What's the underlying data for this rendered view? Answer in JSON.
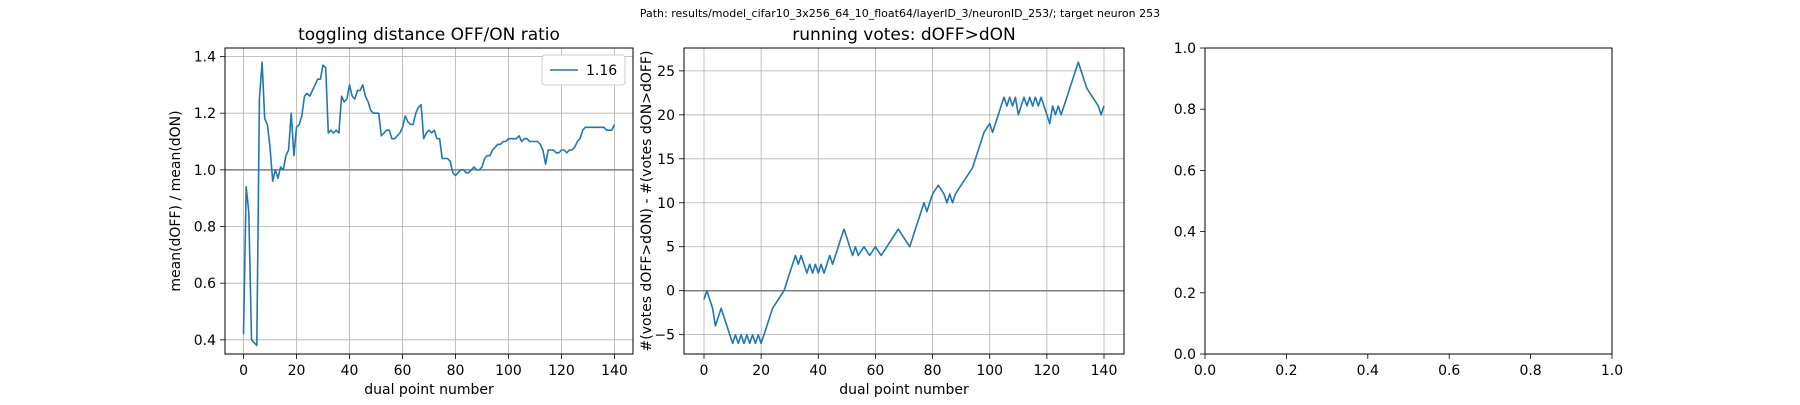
{
  "figure": {
    "suptitle": "Path: results/model_cifar10_3x256_64_10_float64/layerID_3/neuronID_253/; target neuron 253"
  },
  "chart_data": [
    {
      "type": "line",
      "title": "toggling distance OFF/ON ratio",
      "xlabel": "dual point number",
      "ylabel": "mean(dOFF) / mean(dON)",
      "xlim": [
        -7,
        147
      ],
      "ylim": [
        0.35,
        1.43
      ],
      "xticks": [
        0,
        20,
        40,
        60,
        80,
        100,
        120,
        140
      ],
      "yticks": [
        0.4,
        0.6,
        0.8,
        1.0,
        1.2,
        1.4
      ],
      "ytick_labels": [
        "0.4",
        "0.6",
        "0.8",
        "1.0",
        "1.2",
        "1.4"
      ],
      "grid": true,
      "reference_line": 1.0,
      "legend": {
        "position": "top-right",
        "entries": [
          "1.16"
        ]
      },
      "series": [
        {
          "name": "1.16",
          "color": "#1f77b4",
          "x": [
            0,
            1,
            2,
            3,
            4,
            5,
            6,
            7,
            8,
            9,
            10,
            11,
            12,
            13,
            14,
            15,
            16,
            17,
            18,
            19,
            20,
            21,
            22,
            23,
            24,
            25,
            26,
            27,
            28,
            29,
            30,
            31,
            32,
            33,
            34,
            35,
            36,
            37,
            38,
            39,
            40,
            41,
            42,
            43,
            44,
            45,
            46,
            47,
            48,
            49,
            50,
            51,
            52,
            53,
            54,
            55,
            56,
            57,
            58,
            59,
            60,
            61,
            62,
            63,
            64,
            65,
            66,
            67,
            68,
            69,
            70,
            71,
            72,
            73,
            74,
            75,
            76,
            77,
            78,
            79,
            80,
            81,
            82,
            83,
            84,
            85,
            86,
            87,
            88,
            89,
            90,
            91,
            92,
            93,
            94,
            95,
            96,
            97,
            98,
            99,
            100,
            101,
            102,
            103,
            104,
            105,
            106,
            107,
            108,
            109,
            110,
            111,
            112,
            113,
            114,
            115,
            116,
            117,
            118,
            119,
            120,
            121,
            122,
            123,
            124,
            125,
            126,
            127,
            128,
            129,
            130,
            131,
            132,
            133,
            134,
            135,
            136,
            137,
            138,
            139,
            140
          ],
          "y": [
            0.42,
            0.94,
            0.85,
            0.4,
            0.39,
            0.38,
            1.25,
            1.38,
            1.18,
            1.16,
            1.08,
            0.96,
            1.0,
            0.97,
            1.01,
            1.0,
            1.05,
            1.07,
            1.2,
            1.05,
            1.15,
            1.16,
            1.19,
            1.26,
            1.27,
            1.26,
            1.28,
            1.3,
            1.32,
            1.32,
            1.37,
            1.36,
            1.13,
            1.14,
            1.13,
            1.14,
            1.13,
            1.26,
            1.24,
            1.25,
            1.3,
            1.26,
            1.25,
            1.28,
            1.28,
            1.3,
            1.26,
            1.24,
            1.21,
            1.2,
            1.2,
            1.2,
            1.12,
            1.13,
            1.14,
            1.14,
            1.11,
            1.11,
            1.12,
            1.13,
            1.15,
            1.19,
            1.17,
            1.16,
            1.16,
            1.2,
            1.22,
            1.23,
            1.11,
            1.13,
            1.14,
            1.13,
            1.14,
            1.11,
            1.11,
            1.04,
            1.04,
            1.04,
            1.03,
            0.99,
            0.98,
            0.99,
            1.0,
            1.0,
            0.99,
            0.99,
            1.0,
            1.01,
            1.0,
            1.0,
            1.01,
            1.04,
            1.05,
            1.05,
            1.07,
            1.08,
            1.09,
            1.09,
            1.1,
            1.1,
            1.11,
            1.11,
            1.11,
            1.11,
            1.12,
            1.1,
            1.11,
            1.11,
            1.1,
            1.1,
            1.1,
            1.1,
            1.09,
            1.07,
            1.02,
            1.07,
            1.07,
            1.07,
            1.06,
            1.06,
            1.07,
            1.07,
            1.06,
            1.07,
            1.07,
            1.08,
            1.1,
            1.11,
            1.14,
            1.15,
            1.15,
            1.15,
            1.15,
            1.15,
            1.15,
            1.15,
            1.15,
            1.14,
            1.14,
            1.14,
            1.16
          ]
        }
      ]
    },
    {
      "type": "line",
      "title": "running votes: dOFF>dON",
      "xlabel": "dual point number",
      "ylabel": "#(votes dOFF>dON) - #(votes dON>dOFF)",
      "xlim": [
        -7,
        147
      ],
      "ylim": [
        -7.2,
        27.6
      ],
      "xticks": [
        0,
        20,
        40,
        60,
        80,
        100,
        120,
        140
      ],
      "yticks": [
        -5,
        0,
        5,
        10,
        15,
        20,
        25
      ],
      "ytick_labels": [
        "−5",
        "0",
        "5",
        "10",
        "15",
        "20",
        "25"
      ],
      "grid": true,
      "reference_line": 0,
      "series": [
        {
          "name": "",
          "color": "#1f77b4",
          "x": [
            0,
            1,
            3,
            4,
            6,
            8,
            10,
            11,
            12,
            13,
            14,
            15,
            16,
            17,
            18,
            19,
            20,
            22,
            23,
            24,
            28,
            29,
            30,
            31,
            32,
            33,
            34,
            35,
            36,
            37,
            38,
            39,
            40,
            41,
            42,
            43,
            44,
            45,
            46,
            47,
            48,
            49,
            50,
            51,
            52,
            53,
            54,
            56,
            58,
            60,
            62,
            64,
            66,
            68,
            70,
            72,
            73,
            74,
            75,
            76,
            77,
            78,
            79,
            80,
            82,
            84,
            85,
            86,
            87,
            88,
            90,
            92,
            94,
            96,
            98,
            100,
            101,
            102,
            103,
            104,
            105,
            106,
            107,
            108,
            109,
            110,
            111,
            112,
            113,
            114,
            115,
            116,
            117,
            118,
            119,
            120,
            121,
            122,
            123,
            124,
            125,
            126,
            127,
            128,
            129,
            130,
            131,
            132,
            133,
            134,
            136,
            138,
            139,
            140
          ],
          "y": [
            -1,
            0,
            -2,
            -4,
            -2,
            -4,
            -6,
            -5,
            -6,
            -5,
            -6,
            -5,
            -6,
            -5,
            -6,
            -5,
            -6,
            -4,
            -3,
            -2,
            0,
            1,
            2,
            3,
            4,
            3,
            4,
            3,
            2,
            3,
            2,
            3,
            2,
            3,
            2,
            3,
            4,
            3,
            4,
            5,
            6,
            7,
            6,
            5,
            4,
            5,
            4,
            5,
            4,
            5,
            4,
            5,
            6,
            7,
            6,
            5,
            6,
            7,
            8,
            9,
            10,
            9,
            10,
            11,
            12,
            11,
            10,
            11,
            10,
            11,
            12,
            13,
            14,
            16,
            18,
            19,
            18,
            19,
            20,
            21,
            22,
            21,
            22,
            21,
            22,
            20,
            21,
            22,
            21,
            22,
            21,
            22,
            21,
            22,
            21,
            20,
            19,
            21,
            20,
            21,
            20,
            21,
            22,
            23,
            24,
            25,
            26,
            25,
            24,
            23,
            22,
            21,
            20,
            21
          ]
        }
      ]
    },
    {
      "type": "line",
      "title": "",
      "xlabel": "",
      "ylabel": "",
      "xlim": [
        0,
        1
      ],
      "ylim": [
        0,
        1
      ],
      "xticks": [
        0,
        0.2,
        0.4,
        0.6,
        0.8,
        1.0
      ],
      "yticks": [
        0,
        0.2,
        0.4,
        0.6,
        0.8,
        1.0
      ],
      "ytick_labels": [
        "0.0",
        "0.2",
        "0.4",
        "0.6",
        "0.8",
        "1.0"
      ],
      "xtick_labels": [
        "0.0",
        "0.2",
        "0.4",
        "0.6",
        "0.8",
        "1.0"
      ],
      "grid": false,
      "series": []
    }
  ]
}
